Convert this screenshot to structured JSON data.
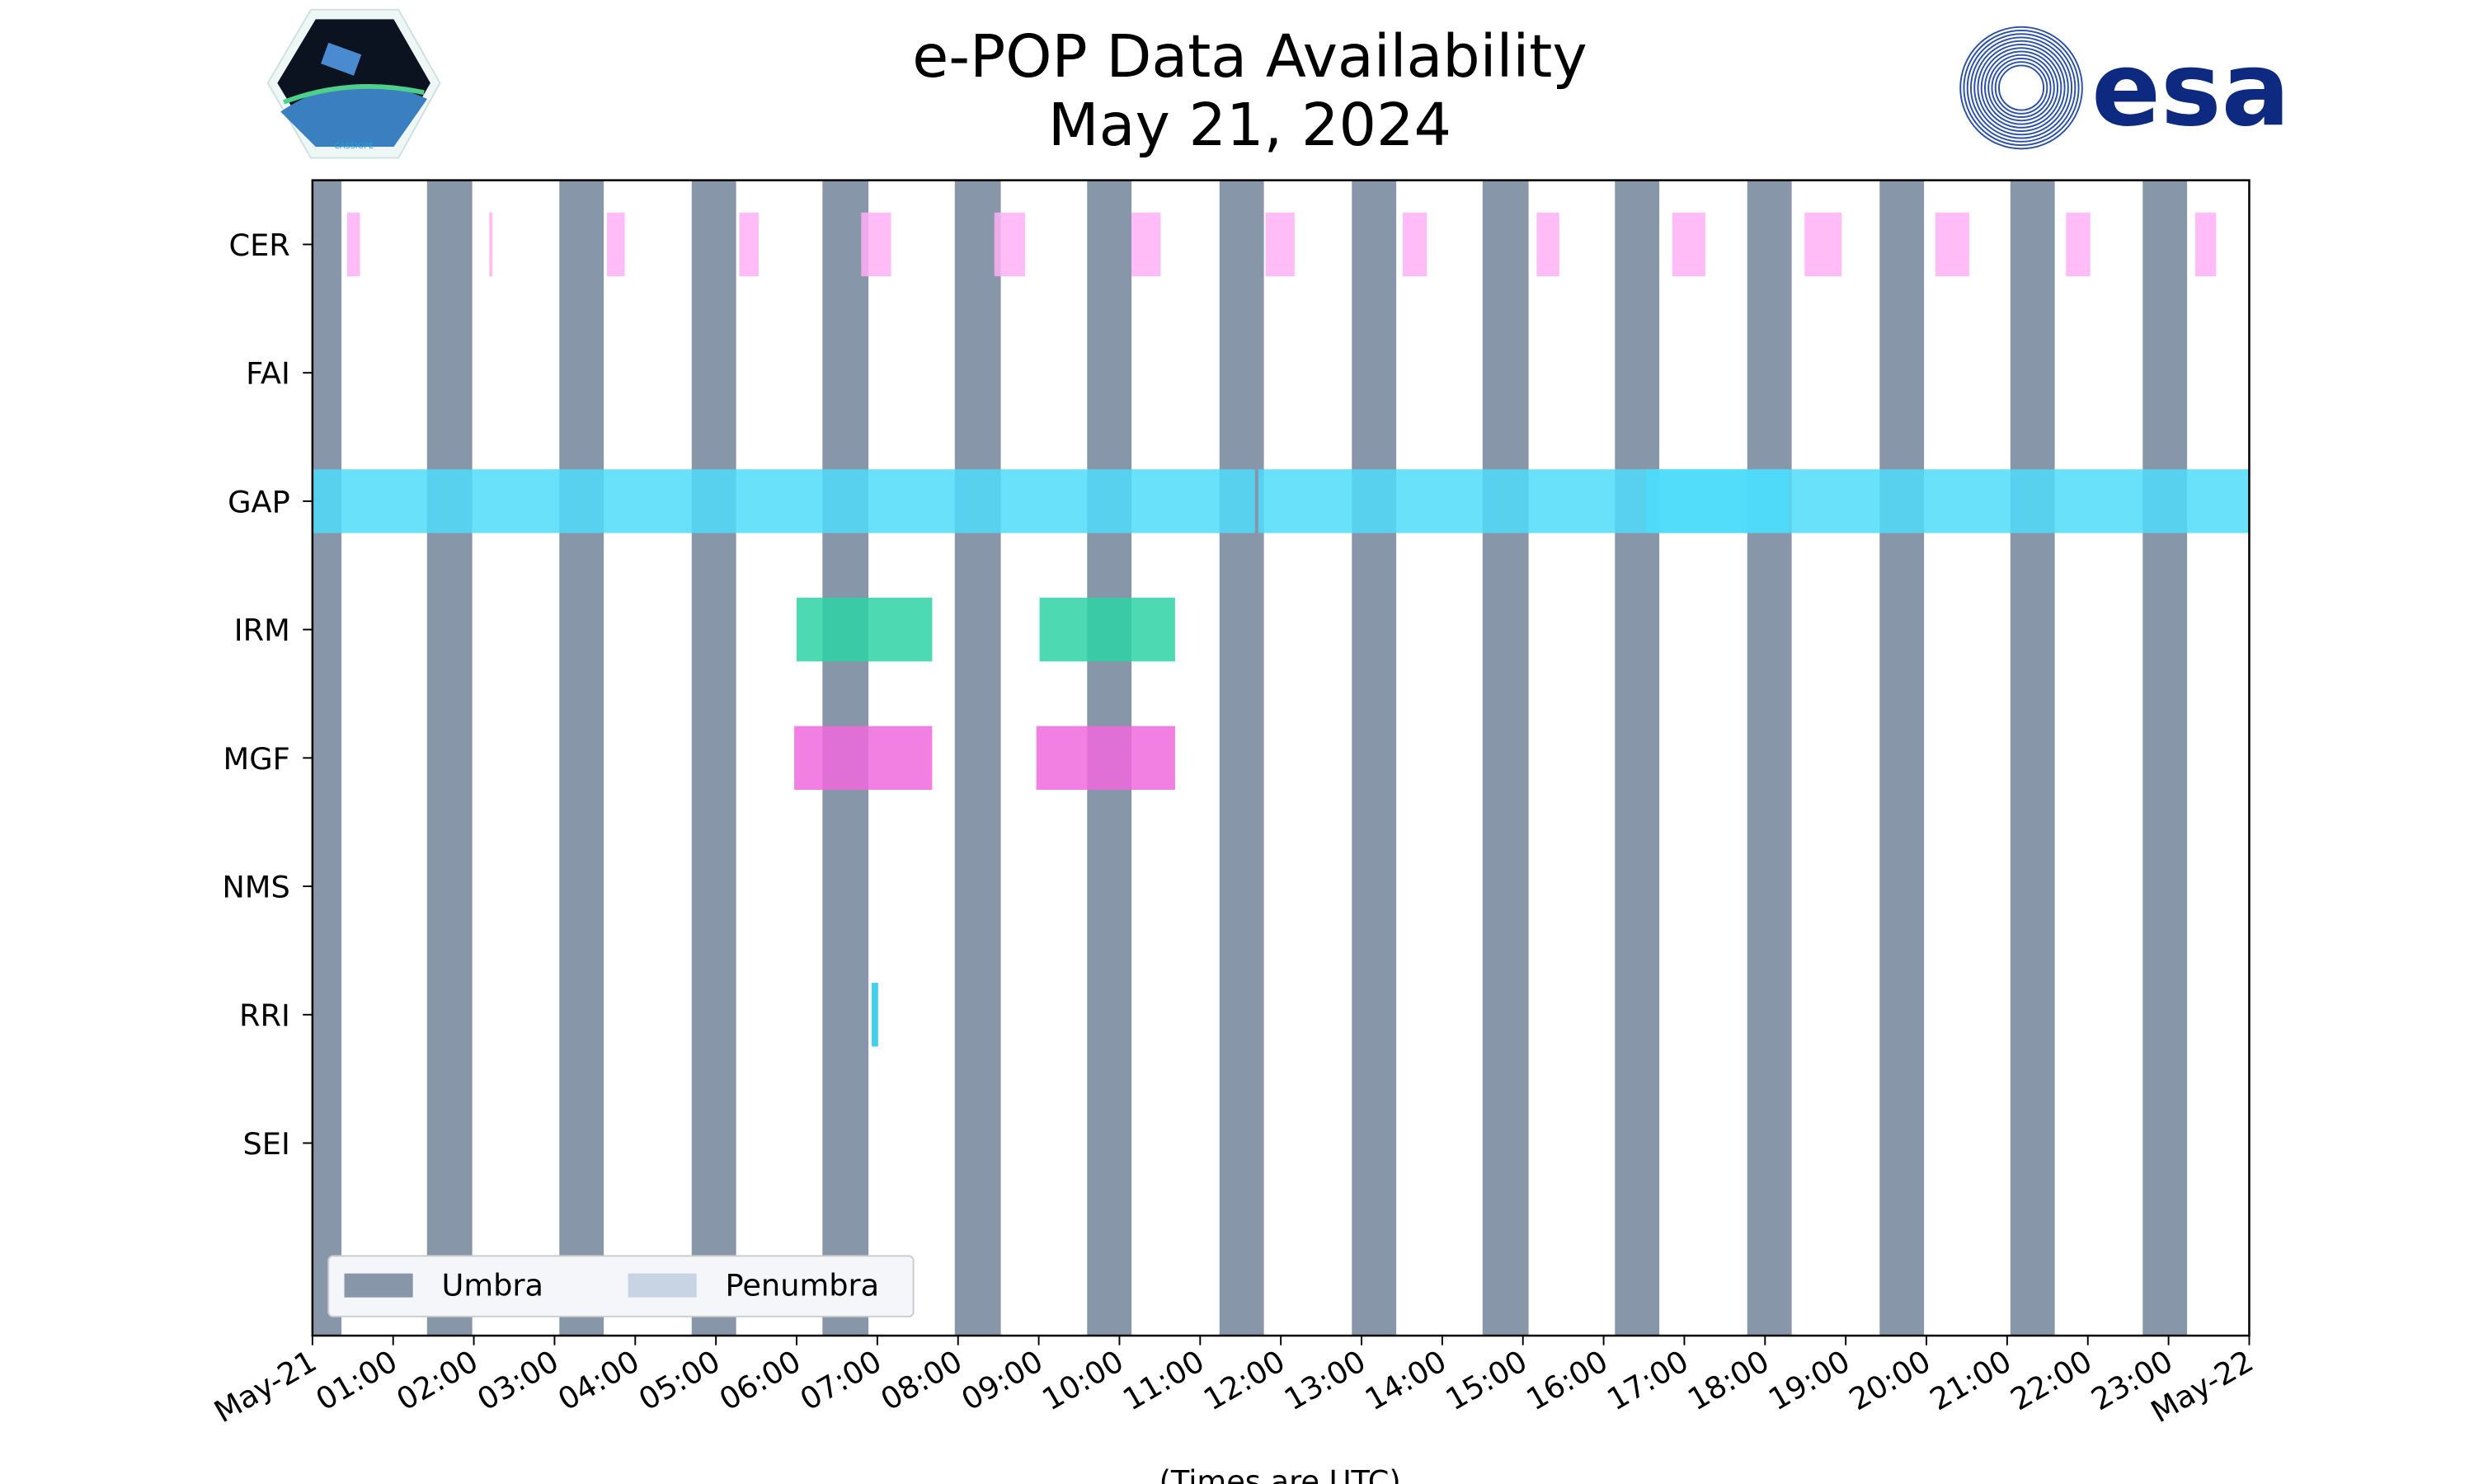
{
  "chart_data": {
    "type": "timeline",
    "title": "e-POP Data Availability",
    "subtitle": "May 21, 2024",
    "xlabel": "(Times are UTC)",
    "x_unit": "hours since May 21 00:00 UTC",
    "xlim": [
      0,
      24
    ],
    "x_tick_labels": [
      "May-21",
      "01:00",
      "02:00",
      "03:00",
      "04:00",
      "05:00",
      "06:00",
      "07:00",
      "08:00",
      "09:00",
      "10:00",
      "11:00",
      "12:00",
      "13:00",
      "14:00",
      "15:00",
      "16:00",
      "17:00",
      "18:00",
      "19:00",
      "20:00",
      "21:00",
      "22:00",
      "23:00",
      "May-22"
    ],
    "categories": [
      "CER",
      "FAI",
      "GAP",
      "IRM",
      "MGF",
      "NMS",
      "RRI",
      "SEI"
    ],
    "legend": {
      "placement": "lower-left",
      "entries": [
        {
          "label": "Umbra",
          "color": "#8796a8"
        },
        {
          "label": "Penumbra",
          "color": "#c8d4e4"
        }
      ]
    },
    "umbra": [
      [
        0,
        0.36
      ],
      [
        1.42,
        1.98
      ],
      [
        3.06,
        3.61
      ],
      [
        4.7,
        5.25
      ],
      [
        6.32,
        6.89
      ],
      [
        7.96,
        8.53
      ],
      [
        9.6,
        10.15
      ],
      [
        11.24,
        11.79
      ],
      [
        12.88,
        13.43
      ],
      [
        14.5,
        15.07
      ],
      [
        16.14,
        16.69
      ],
      [
        17.78,
        18.33
      ],
      [
        19.42,
        19.97
      ],
      [
        21.04,
        21.59
      ],
      [
        22.68,
        23.23
      ]
    ],
    "penumbra": [],
    "series": [
      {
        "name": "CER",
        "color": "#ffb0f5",
        "intervals": [
          [
            0.43,
            0.59
          ],
          [
            2.19,
            2.23
          ],
          [
            3.65,
            3.87
          ],
          [
            5.29,
            5.53
          ],
          [
            6.8,
            7.17
          ],
          [
            8.45,
            8.83
          ],
          [
            10.15,
            10.51
          ],
          [
            11.81,
            12.17
          ],
          [
            13.51,
            13.81
          ],
          [
            15.17,
            15.45
          ],
          [
            16.85,
            17.26
          ],
          [
            18.49,
            18.95
          ],
          [
            20.11,
            20.53
          ],
          [
            21.73,
            22.03
          ],
          [
            23.33,
            23.59
          ]
        ]
      },
      {
        "name": "FAI",
        "color": "#cccccc",
        "intervals": []
      },
      {
        "name": "GAP",
        "color": "#4fdcfa",
        "intervals": [
          [
            0,
            11.68
          ],
          [
            11.72,
            24
          ],
          [
            16.53,
            18.29
          ]
        ]
      },
      {
        "name": "IRM",
        "color": "#2ed3a6",
        "intervals": [
          [
            6.0,
            7.68
          ],
          [
            9.01,
            10.69
          ]
        ]
      },
      {
        "name": "MGF",
        "color": "#f06ade",
        "intervals": [
          [
            5.97,
            7.68
          ],
          [
            8.97,
            10.69
          ]
        ]
      },
      {
        "name": "NMS",
        "color": "#cccccc",
        "intervals": []
      },
      {
        "name": "RRI",
        "color": "#22c8e8",
        "intervals": [
          [
            6.93,
            7.01
          ]
        ]
      },
      {
        "name": "SEI",
        "color": "#cccccc",
        "intervals": []
      }
    ]
  },
  "logos": {
    "left": "CASSIOPE",
    "right": "esa"
  }
}
